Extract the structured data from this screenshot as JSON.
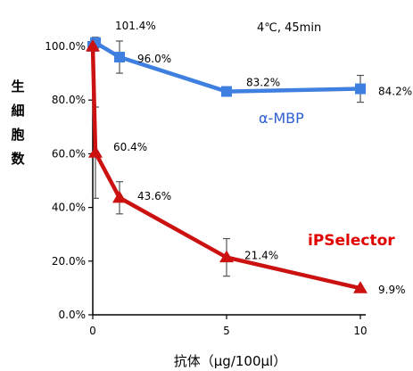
{
  "chart_data": {
    "type": "line",
    "title": "",
    "annotation": "4℃, 45min",
    "xlabel": "抗体（μg/100μl）",
    "ylabel": "生細胞数",
    "xlim": [
      0,
      10
    ],
    "ylim": [
      0,
      100
    ],
    "x_ticks": [
      "0",
      "5",
      "10"
    ],
    "x_tick_values": [
      0,
      5,
      10
    ],
    "y_ticks": [
      "0.0%",
      "20.0%",
      "40.0%",
      "60.0%",
      "80.0%",
      "100.0%"
    ],
    "y_tick_values": [
      0,
      20,
      40,
      60,
      80,
      100
    ],
    "series": [
      {
        "name": "α-MBP",
        "color": "#3f7fe0",
        "marker": "square",
        "x": [
          0,
          0.1,
          1,
          5,
          10
        ],
        "y": [
          100,
          101.4,
          96.0,
          83.2,
          84.2
        ],
        "err": [
          0,
          2,
          6,
          0,
          5
        ],
        "labels": [
          "",
          "101.4%",
          "96.0%",
          "83.2%",
          "84.2%"
        ]
      },
      {
        "name": "iPSelector",
        "color": "#cc1111",
        "marker": "triangle",
        "x": [
          0,
          0.1,
          1,
          5,
          10
        ],
        "y": [
          100,
          60.4,
          43.6,
          21.4,
          9.9
        ],
        "err": [
          0,
          17,
          6,
          7,
          0
        ],
        "labels": [
          "",
          "60.4%",
          "43.6%",
          "21.4%",
          "9.9%"
        ]
      }
    ],
    "grid": false,
    "legend": "inline labels"
  }
}
